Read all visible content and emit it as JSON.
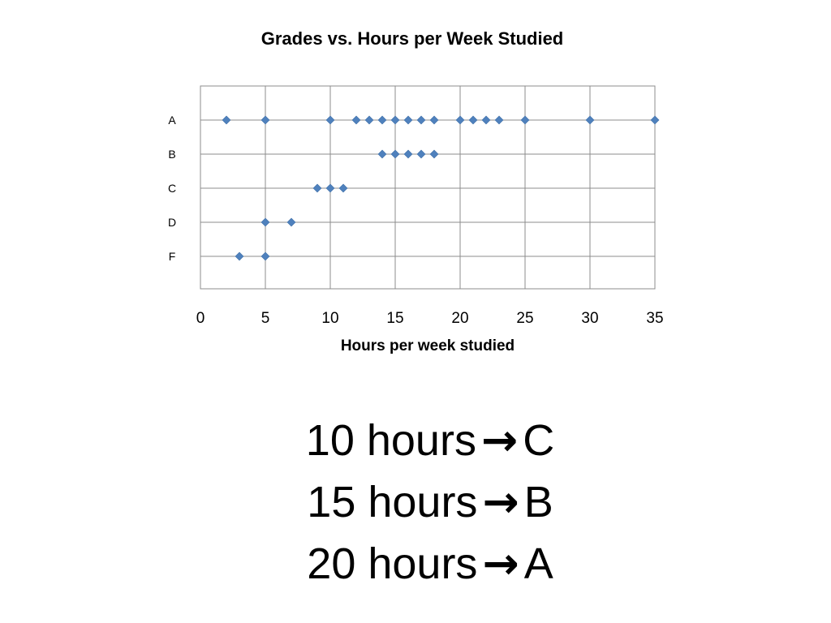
{
  "chart_data": {
    "type": "scatter",
    "title": "Grades vs. Hours per Week Studied",
    "xlabel": "Hours per week studied",
    "ylabel": "",
    "xlim": [
      0,
      35
    ],
    "x_ticks": [
      "0",
      "5",
      "10",
      "15",
      "20",
      "25",
      "30",
      "35"
    ],
    "y_categories": [
      "A",
      "B",
      "C",
      "D",
      "F"
    ],
    "grid": true,
    "marker": "diamond",
    "marker_color": "#4F81BD",
    "points": [
      {
        "x": 2,
        "y": "A"
      },
      {
        "x": 5,
        "y": "A"
      },
      {
        "x": 10,
        "y": "A"
      },
      {
        "x": 12,
        "y": "A"
      },
      {
        "x": 13,
        "y": "A"
      },
      {
        "x": 14,
        "y": "A"
      },
      {
        "x": 15,
        "y": "A"
      },
      {
        "x": 16,
        "y": "A"
      },
      {
        "x": 17,
        "y": "A"
      },
      {
        "x": 18,
        "y": "A"
      },
      {
        "x": 20,
        "y": "A"
      },
      {
        "x": 21,
        "y": "A"
      },
      {
        "x": 22,
        "y": "A"
      },
      {
        "x": 23,
        "y": "A"
      },
      {
        "x": 25,
        "y": "A"
      },
      {
        "x": 30,
        "y": "A"
      },
      {
        "x": 35,
        "y": "A"
      },
      {
        "x": 14,
        "y": "B"
      },
      {
        "x": 15,
        "y": "B"
      },
      {
        "x": 16,
        "y": "B"
      },
      {
        "x": 17,
        "y": "B"
      },
      {
        "x": 18,
        "y": "B"
      },
      {
        "x": 9,
        "y": "C"
      },
      {
        "x": 10,
        "y": "C"
      },
      {
        "x": 11,
        "y": "C"
      },
      {
        "x": 5,
        "y": "D"
      },
      {
        "x": 7,
        "y": "D"
      },
      {
        "x": 3,
        "y": "F"
      },
      {
        "x": 5,
        "y": "F"
      }
    ]
  },
  "summary": [
    {
      "hours": "10 hours",
      "arrow": "→",
      "grade": "C"
    },
    {
      "hours": "15 hours",
      "arrow": "→",
      "grade": "B"
    },
    {
      "hours": "20 hours",
      "arrow": "→",
      "grade": "A"
    }
  ]
}
